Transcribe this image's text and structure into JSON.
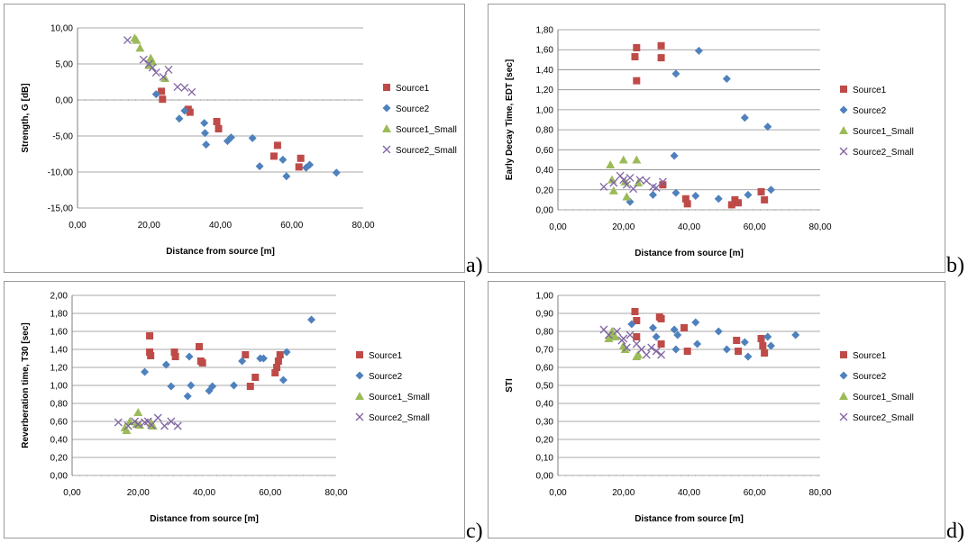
{
  "panel_labels": [
    "a)",
    "b)",
    "c)",
    "d)"
  ],
  "chart_data": [
    {
      "type": "scatter",
      "xlabel": "Distance from source [m]",
      "ylabel": "Strength, G [dB]",
      "xlim": [
        0,
        80
      ],
      "ylim": [
        -15,
        10
      ],
      "xticks": [
        "0,00",
        "20,00",
        "40,00",
        "60,00",
        "80,00"
      ],
      "yticks": [
        "10,00",
        "5,00",
        "0,00",
        "-5,00",
        "-10,00",
        "-15,00"
      ],
      "grid": "horizontal",
      "legend": "right",
      "series": [
        {
          "name": "Source1",
          "marker": "square",
          "color": "#be4b48",
          "x": [
            23.5,
            23.8,
            31,
            31.5,
            39,
            39.5,
            55,
            56,
            62,
            62.5
          ],
          "y": [
            1.2,
            0.1,
            -1.3,
            -1.7,
            -3.0,
            -4.0,
            -7.8,
            -6.3,
            -9.3,
            -8.1
          ]
        },
        {
          "name": "Source2",
          "marker": "diamond",
          "color": "#4f81bd",
          "x": [
            22,
            28.5,
            30,
            35.5,
            35.7,
            36,
            42,
            43,
            49,
            51,
            57.5,
            58.5,
            64,
            65,
            72.5
          ],
          "y": [
            0.8,
            -2.6,
            -1.5,
            -3.2,
            -4.6,
            -6.2,
            -5.7,
            -5.2,
            -5.3,
            -9.2,
            -8.3,
            -10.6,
            -9.4,
            -9.0,
            -10.1
          ]
        },
        {
          "name": "Source1_Small",
          "marker": "triangle",
          "color": "#9bbb59",
          "x": [
            16,
            16.5,
            17.5,
            20,
            20.5,
            21,
            24.5
          ],
          "y": [
            8.6,
            8.3,
            7.2,
            4.8,
            5.8,
            5.3,
            3.0
          ]
        },
        {
          "name": "Source2_Small",
          "marker": "x",
          "color": "#8064a2",
          "x": [
            14,
            18.5,
            20,
            21,
            22,
            24,
            25.5,
            28,
            30,
            32
          ],
          "y": [
            8.3,
            5.6,
            5.0,
            4.5,
            3.8,
            3.2,
            4.2,
            1.8,
            1.7,
            1.1
          ]
        }
      ]
    },
    {
      "type": "scatter",
      "xlabel": "Distance from source [m]",
      "ylabel": "Early Decay Time, EDT [sec]",
      "xlim": [
        0,
        80
      ],
      "ylim": [
        0,
        1.8
      ],
      "xticks": [
        "0,00",
        "20,00",
        "40,00",
        "60,00",
        "80,00"
      ],
      "yticks": [
        "1,80",
        "1,60",
        "1,40",
        "1,20",
        "1,00",
        "0,80",
        "0,60",
        "0,40",
        "0,20",
        "0,00"
      ],
      "grid": "horizontal",
      "legend": "right",
      "series": [
        {
          "name": "Source1",
          "marker": "square",
          "color": "#be4b48",
          "x": [
            24,
            23.5,
            24,
            31.5,
            31.5,
            32,
            39,
            39.5,
            53,
            54,
            55,
            62,
            63
          ],
          "y": [
            1.62,
            1.53,
            1.29,
            1.64,
            1.52,
            0.25,
            0.11,
            0.06,
            0.05,
            0.1,
            0.07,
            0.18,
            0.1
          ]
        },
        {
          "name": "Source2",
          "marker": "diamond",
          "color": "#4f81bd",
          "x": [
            22,
            29,
            35.5,
            36,
            36,
            42,
            43,
            49,
            51.5,
            57,
            58,
            64,
            65
          ],
          "y": [
            0.08,
            0.15,
            0.54,
            1.36,
            0.17,
            0.14,
            1.59,
            0.11,
            1.31,
            0.92,
            0.15,
            0.83,
            0.2
          ]
        },
        {
          "name": "Source1_Small",
          "marker": "triangle",
          "color": "#9bbb59",
          "x": [
            16,
            16.5,
            17,
            20,
            20.5,
            21,
            24,
            24.5
          ],
          "y": [
            0.45,
            0.3,
            0.19,
            0.5,
            0.28,
            0.13,
            0.5,
            0.27
          ]
        },
        {
          "name": "Source2_Small",
          "marker": "x",
          "color": "#8064a2",
          "x": [
            14,
            17,
            19,
            20,
            21,
            22,
            23,
            25,
            27,
            29,
            30,
            32
          ],
          "y": [
            0.23,
            0.27,
            0.34,
            0.3,
            0.25,
            0.32,
            0.21,
            0.3,
            0.29,
            0.23,
            0.22,
            0.28
          ]
        }
      ]
    },
    {
      "type": "scatter",
      "xlabel": "Distance from source [m]",
      "ylabel": "Reverberation time, T30 [sec]",
      "xlim": [
        0,
        80
      ],
      "ylim": [
        0,
        2
      ],
      "xticks": [
        "0,00",
        "20,00",
        "40,00",
        "60,00",
        "80,00"
      ],
      "yticks": [
        "2,00",
        "1,80",
        "1,60",
        "1,40",
        "1,20",
        "1,00",
        "0,80",
        "0,60",
        "0,40",
        "0,20",
        "0,00"
      ],
      "grid": "horizontal",
      "legend": "right",
      "series": [
        {
          "name": "Source1",
          "marker": "square",
          "color": "#be4b48",
          "x": [
            23.5,
            23.5,
            23.8,
            31,
            31.3,
            38.5,
            39,
            39.5,
            52.5,
            54,
            55.5,
            61.5,
            62,
            62.5,
            63
          ],
          "y": [
            1.55,
            1.37,
            1.33,
            1.37,
            1.32,
            1.43,
            1.27,
            1.25,
            1.34,
            0.99,
            1.09,
            1.14,
            1.2,
            1.27,
            1.34
          ]
        },
        {
          "name": "Source2",
          "marker": "diamond",
          "color": "#4f81bd",
          "x": [
            22,
            28.5,
            30,
            35,
            35.5,
            36,
            41.5,
            42.5,
            49,
            51.5,
            57,
            58,
            64,
            65,
            72.5
          ],
          "y": [
            1.15,
            1.23,
            0.99,
            0.88,
            1.32,
            1.0,
            0.94,
            0.99,
            1.0,
            1.27,
            1.3,
            1.3,
            1.06,
            1.37,
            1.73
          ]
        },
        {
          "name": "Source1_Small",
          "marker": "triangle",
          "color": "#9bbb59",
          "x": [
            16,
            16.5,
            17.5,
            19.5,
            20,
            20.5,
            24,
            24.5
          ],
          "y": [
            0.53,
            0.5,
            0.6,
            0.57,
            0.7,
            0.56,
            0.58,
            0.55
          ]
        },
        {
          "name": "Source2_Small",
          "marker": "x",
          "color": "#8064a2",
          "x": [
            14,
            17,
            19,
            20,
            22,
            23,
            24,
            26,
            28,
            30,
            32
          ],
          "y": [
            0.59,
            0.55,
            0.6,
            0.57,
            0.59,
            0.6,
            0.56,
            0.64,
            0.55,
            0.6,
            0.55
          ]
        }
      ]
    },
    {
      "type": "scatter",
      "xlabel": "Distance from source [m]",
      "ylabel": "STI",
      "xlim": [
        0,
        80
      ],
      "ylim": [
        0,
        1
      ],
      "xticks": [
        "0,00",
        "20,00",
        "40,00",
        "60,00",
        "80,00"
      ],
      "yticks": [
        "1,00",
        "0,90",
        "0,80",
        "0,70",
        "0,60",
        "0,50",
        "0,40",
        "0,30",
        "0,20",
        "0,10",
        "0,00"
      ],
      "grid": "horizontal",
      "legend": "right",
      "series": [
        {
          "name": "Source1",
          "marker": "square",
          "color": "#be4b48",
          "x": [
            23.5,
            24,
            24,
            31,
            31.5,
            31.5,
            38.5,
            39.5,
            54.5,
            55,
            62,
            62.5,
            63
          ],
          "y": [
            0.91,
            0.86,
            0.77,
            0.88,
            0.87,
            0.73,
            0.82,
            0.69,
            0.75,
            0.69,
            0.76,
            0.72,
            0.68
          ]
        },
        {
          "name": "Source2",
          "marker": "diamond",
          "color": "#4f81bd",
          "x": [
            22.5,
            29,
            30,
            35.5,
            36,
            36.5,
            42,
            42.5,
            49,
            51.5,
            57,
            58,
            64,
            65,
            72.5
          ],
          "y": [
            0.84,
            0.82,
            0.77,
            0.81,
            0.7,
            0.78,
            0.85,
            0.73,
            0.8,
            0.7,
            0.74,
            0.66,
            0.77,
            0.72,
            0.78
          ]
        },
        {
          "name": "Source1_Small",
          "marker": "triangle",
          "color": "#9bbb59",
          "x": [
            15.5,
            16,
            16.5,
            17.5,
            20,
            20.5,
            24,
            24.5
          ],
          "y": [
            0.76,
            0.78,
            0.8,
            0.77,
            0.72,
            0.7,
            0.66,
            0.67
          ]
        },
        {
          "name": "Source2_Small",
          "marker": "x",
          "color": "#8064a2",
          "x": [
            14,
            15.5,
            18,
            19.5,
            20,
            21,
            22,
            24,
            25.5,
            27,
            28.5,
            30,
            31.5
          ],
          "y": [
            0.81,
            0.78,
            0.8,
            0.75,
            0.76,
            0.71,
            0.78,
            0.73,
            0.7,
            0.67,
            0.71,
            0.69,
            0.67
          ]
        }
      ]
    }
  ]
}
